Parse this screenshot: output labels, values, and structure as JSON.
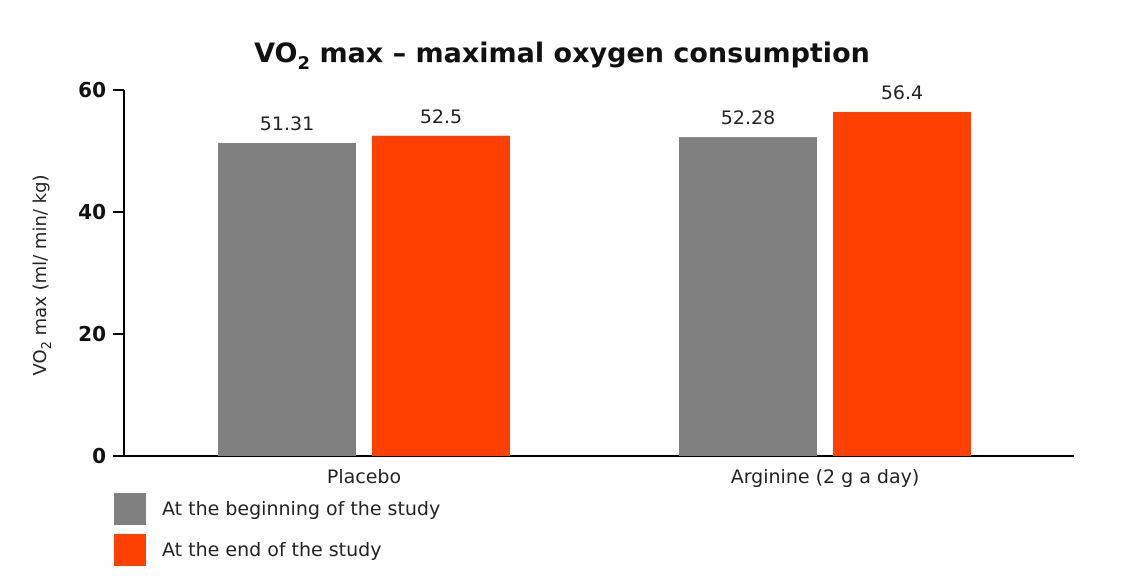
{
  "chart_data": {
    "type": "bar",
    "title_parts": {
      "pre": "VO",
      "sub": "2",
      "post": " max – maximal oxygen consumption"
    },
    "ylabel_parts": {
      "pre": "VO",
      "sub": "2",
      "post": " max (ml/ min/ kg)"
    },
    "xlabel": "",
    "categories": [
      "Placebo",
      "Arginine (2 g a day)"
    ],
    "series": [
      {
        "name": "At the beginning of the study",
        "color": "#808080",
        "values": [
          51.31,
          52.28
        ],
        "labels": [
          "51.31",
          "52.28"
        ]
      },
      {
        "name": "At the end of the study",
        "color": "#ff4000",
        "values": [
          52.5,
          56.4
        ],
        "labels": [
          "52.5",
          "56.4"
        ]
      }
    ],
    "ylim": [
      0,
      60
    ],
    "yticks": [
      0,
      20,
      40,
      60
    ],
    "grid": false,
    "legend_position": "bottom-left"
  }
}
